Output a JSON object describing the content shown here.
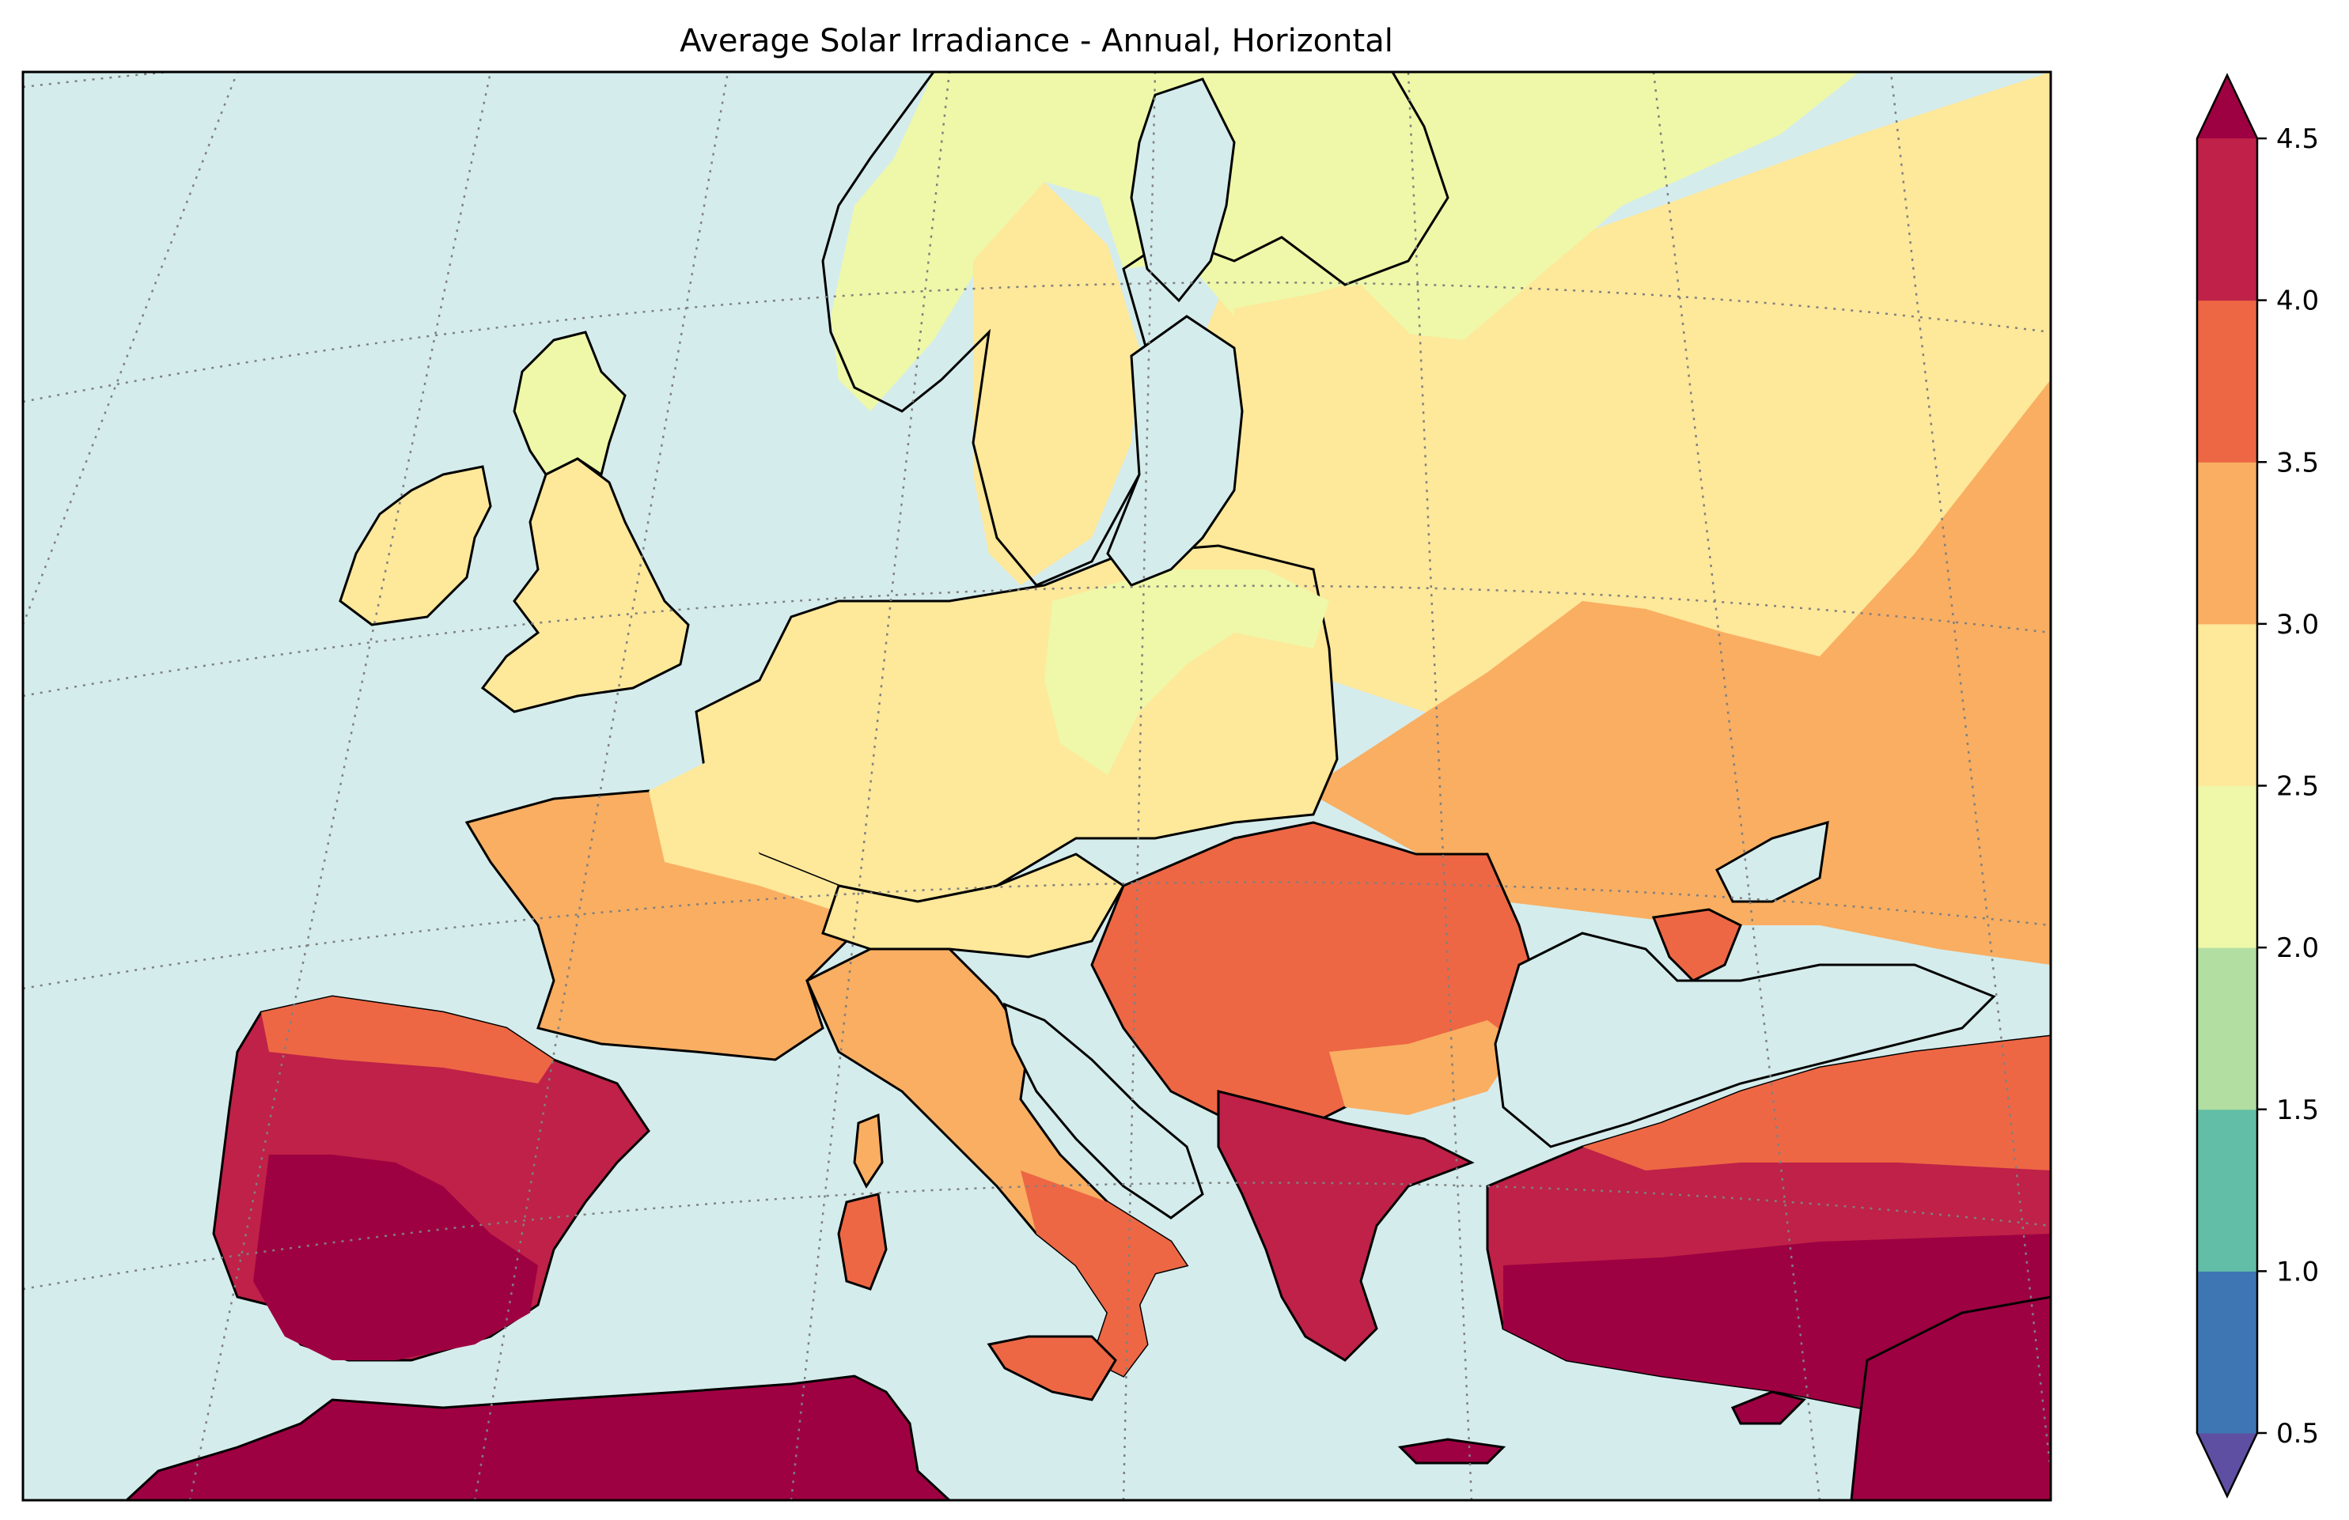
{
  "map": {
    "title": "Average Solar Irradiance - Annual, Horizontal",
    "projection": "conic",
    "graticule": "dotted",
    "ocean_color": "#d5ecec",
    "border_color": "#000000",
    "regions": [
      {
        "name": "Iceland-side ocean",
        "level": "ocean"
      },
      {
        "name": "Northern Scandinavia / Finland",
        "band": "2.0-2.5"
      },
      {
        "name": "Scotland",
        "band": "2.0-2.5"
      },
      {
        "name": "Ireland",
        "band": "2.5-3.0"
      },
      {
        "name": "England",
        "band": "2.5-3.0"
      },
      {
        "name": "Southern Sweden / Norway",
        "band": "2.5-3.0"
      },
      {
        "name": "Poland / Baltics",
        "band": "2.0-3.0"
      },
      {
        "name": "Germany / Benelux",
        "band": "2.5-3.0"
      },
      {
        "name": "Russia west",
        "band": "2.5-3.0"
      },
      {
        "name": "France",
        "band": "3.0-3.5"
      },
      {
        "name": "Ukraine",
        "band": "3.0-3.5"
      },
      {
        "name": "Italy",
        "band": "3.0-4.0"
      },
      {
        "name": "Romania / Balkans",
        "band": "3.5-4.0"
      },
      {
        "name": "Turkey north",
        "band": "3.5-4.0"
      },
      {
        "name": "Iberia",
        "band": "4.0-4.5+"
      },
      {
        "name": "Greece",
        "band": "4.0-4.5+"
      },
      {
        "name": "Turkey south",
        "band": "4.5+"
      },
      {
        "name": "North Africa",
        "band": "4.5+"
      }
    ]
  },
  "colorbar": {
    "ticks": [
      "0.5",
      "1.0",
      "1.5",
      "2.0",
      "2.5",
      "3.0",
      "3.5",
      "4.0",
      "4.5"
    ],
    "extend": "both",
    "colors": [
      "#5e4fa2",
      "#3e76b4",
      "#62bea6",
      "#b2dea2",
      "#eef8a8",
      "#fee89a",
      "#f9ae62",
      "#ed6744",
      "#bf2148",
      "#9e0142"
    ]
  }
}
